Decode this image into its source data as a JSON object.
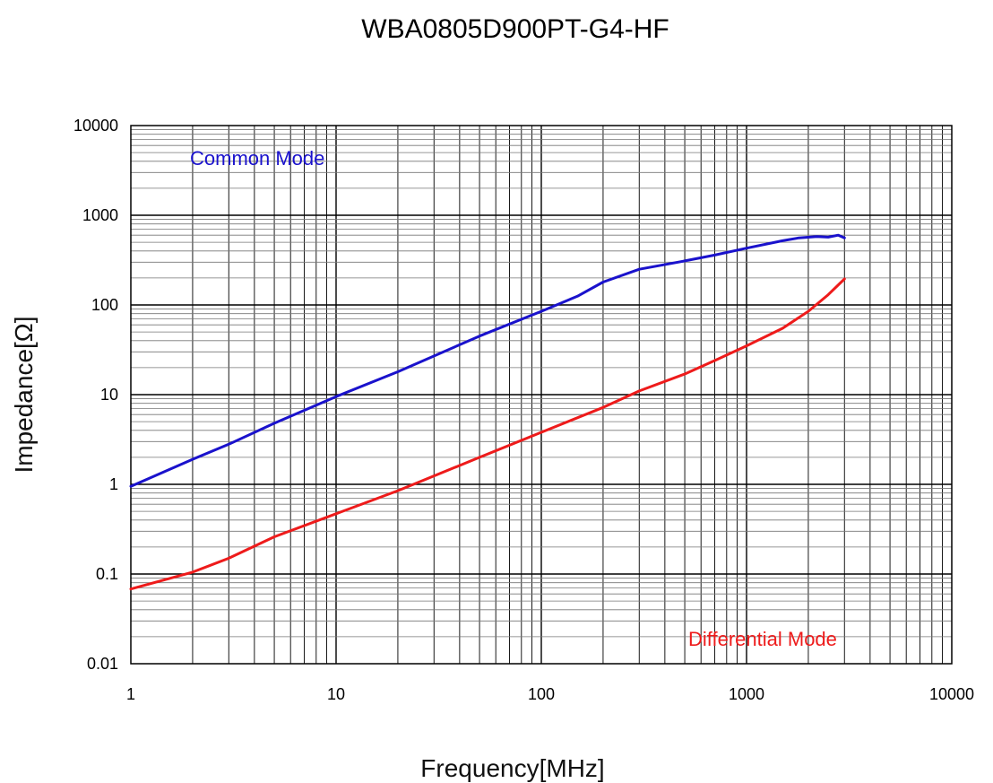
{
  "chart_data": {
    "type": "line",
    "title": "WBA0805D900PT-G4-HF",
    "xlabel": "Frequency[MHz]",
    "ylabel": "Impedance[Ω]",
    "xscale": "log",
    "yscale": "log",
    "xlim": [
      1,
      10000
    ],
    "ylim": [
      0.01,
      10000
    ],
    "grid": true,
    "x_ticks": [
      "1",
      "10",
      "100",
      "1000",
      "10000"
    ],
    "y_ticks": [
      "10000",
      "1000",
      "100",
      "10",
      "1",
      "0.1",
      "0.01"
    ],
    "series": [
      {
        "name": "Common Mode",
        "color": "#1a12cc",
        "x": [
          1,
          2,
          3,
          5,
          10,
          20,
          50,
          100,
          150,
          200,
          300,
          500,
          700,
          1000,
          1500,
          1800,
          2200,
          2500,
          2800,
          3000
        ],
        "y": [
          0.95,
          1.9,
          2.8,
          4.8,
          9.5,
          18,
          45,
          85,
          125,
          180,
          250,
          310,
          360,
          430,
          520,
          560,
          580,
          570,
          600,
          560
        ]
      },
      {
        "name": "Differential Mode",
        "color": "#ee1b1b",
        "x": [
          1,
          2,
          3,
          5,
          10,
          20,
          50,
          100,
          200,
          300,
          500,
          700,
          1000,
          1500,
          2000,
          2500,
          3000
        ],
        "y": [
          0.068,
          0.105,
          0.15,
          0.26,
          0.47,
          0.85,
          2.0,
          3.8,
          7.2,
          11,
          17,
          24,
          35,
          55,
          85,
          130,
          195
        ]
      }
    ]
  }
}
